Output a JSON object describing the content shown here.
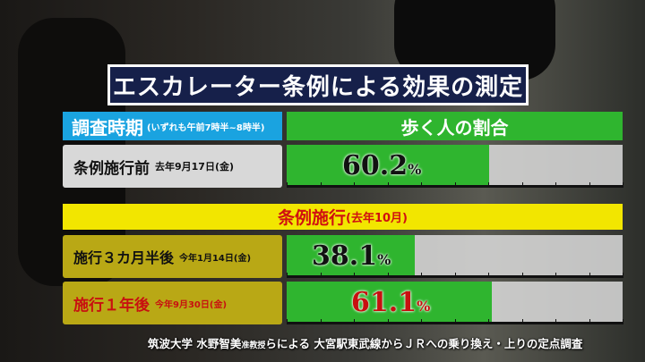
{
  "title": "エスカレーター条例による効果の測定",
  "header": {
    "period_label": "調査時期",
    "period_note": "(いずれも午前7時半~8時半)",
    "ratio_label": "歩く人の割合"
  },
  "banner": {
    "label": "条例施行",
    "note": "(去年10月)"
  },
  "rows": [
    {
      "label": "条例施行前",
      "date": "去年9月17日(金)",
      "value": "60.2",
      "unit": "%"
    },
    {
      "label": "施行３カ月半後",
      "date": "今年1月14日(金)",
      "value": "38.1",
      "unit": "%"
    },
    {
      "label": "施行１年後",
      "date": "今年9月30日(金)",
      "value": "61.1",
      "unit": "%"
    }
  ],
  "footer": {
    "source1": "筑波大学 水野智美",
    "source2": "准教授",
    "source3": "らによる 大宮駅東武線からＪＲへの乗り換え・上りの定点調査"
  },
  "chart_data": {
    "type": "bar",
    "orientation": "horizontal",
    "categories": [
      "条例施行前",
      "施行３カ月半後",
      "施行１年後"
    ],
    "values": [
      60.2,
      38.1,
      61.1
    ],
    "xlim": [
      0,
      100
    ],
    "unit": "%"
  },
  "colors": {
    "bar": "#2fb52f",
    "header_blue": "#1aa3e0",
    "banner_yellow": "#f2e600",
    "highlight_red": "#d01010"
  }
}
